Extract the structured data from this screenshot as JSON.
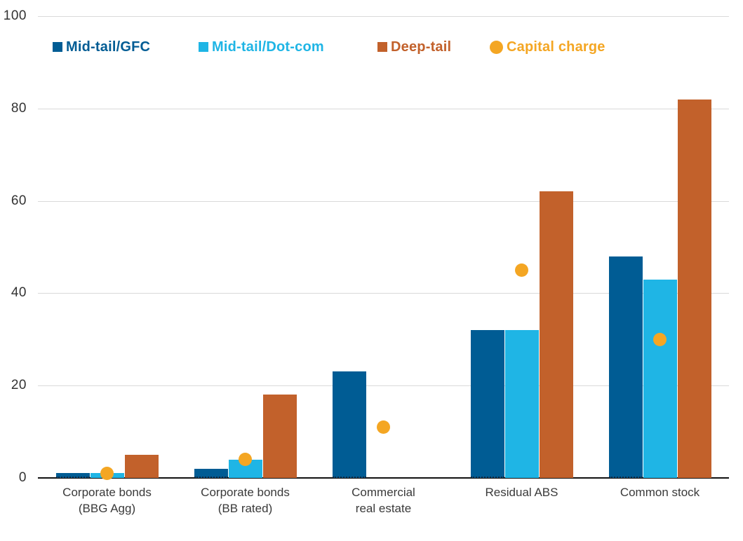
{
  "chart_data": {
    "type": "bar",
    "title": "",
    "xlabel": "",
    "ylabel": "",
    "ylim": [
      0,
      100
    ],
    "yticks": [
      0,
      20,
      40,
      60,
      80,
      100
    ],
    "grid": "horizontal",
    "legend_position": "top-left-inside",
    "categories": [
      "Corporate bonds\n(BBG Agg)",
      "Corporate bonds\n(BB rated)",
      "Commercial\nreal estate",
      "Residual ABS",
      "Common stock"
    ],
    "series": [
      {
        "name": "Mid-tail/GFC",
        "color": "#005c94",
        "values": [
          1,
          2,
          23,
          32,
          48
        ]
      },
      {
        "name": "Mid-tail/Dot-com",
        "color": "#1fb5e5",
        "values": [
          1,
          4,
          null,
          32,
          43
        ]
      },
      {
        "name": "Deep-tail",
        "color": "#c2612b",
        "values": [
          5,
          18,
          null,
          62,
          82
        ]
      }
    ],
    "point_series": {
      "name": "Capital charge",
      "color": "#f4a623",
      "marker": "circle",
      "values": [
        1,
        4,
        11,
        45,
        30
      ]
    }
  },
  "colors": {
    "background": "#ffffff",
    "gridline": "#d9d9d9",
    "axis_baseline": "#111111",
    "y_tick_label": "#333333",
    "x_category_label": "#3a3a3a"
  }
}
